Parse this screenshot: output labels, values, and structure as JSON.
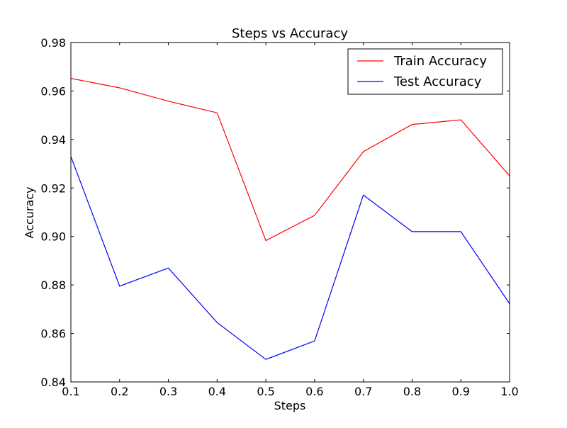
{
  "chart_data": {
    "type": "line",
    "title": "Steps vs Accuracy",
    "xlabel": "Steps",
    "ylabel": "Accuracy",
    "xlim": [
      0.1,
      1.0
    ],
    "ylim": [
      0.84,
      0.98
    ],
    "x_ticks": [
      "0.1",
      "0.2",
      "0.3",
      "0.4",
      "0.5",
      "0.6",
      "0.7",
      "0.8",
      "0.9",
      "1.0"
    ],
    "y_ticks": [
      "0.84",
      "0.86",
      "0.88",
      "0.90",
      "0.92",
      "0.94",
      "0.96",
      "0.98"
    ],
    "x": [
      0.1,
      0.2,
      0.3,
      0.4,
      0.5,
      0.6,
      0.7,
      0.8,
      0.9,
      1.0
    ],
    "series": [
      {
        "name": "Train Accuracy",
        "color": "#ff0000",
        "values": [
          0.9652,
          0.9613,
          0.9558,
          0.951,
          0.8983,
          0.9087,
          0.935,
          0.9462,
          0.9481,
          0.925
        ]
      },
      {
        "name": "Test Accuracy",
        "color": "#0000ff",
        "values": [
          0.933,
          0.8795,
          0.887,
          0.8645,
          0.8493,
          0.8569,
          0.9171,
          0.902,
          0.902,
          0.8723
        ]
      }
    ],
    "legend": "top-right",
    "grid": false
  }
}
